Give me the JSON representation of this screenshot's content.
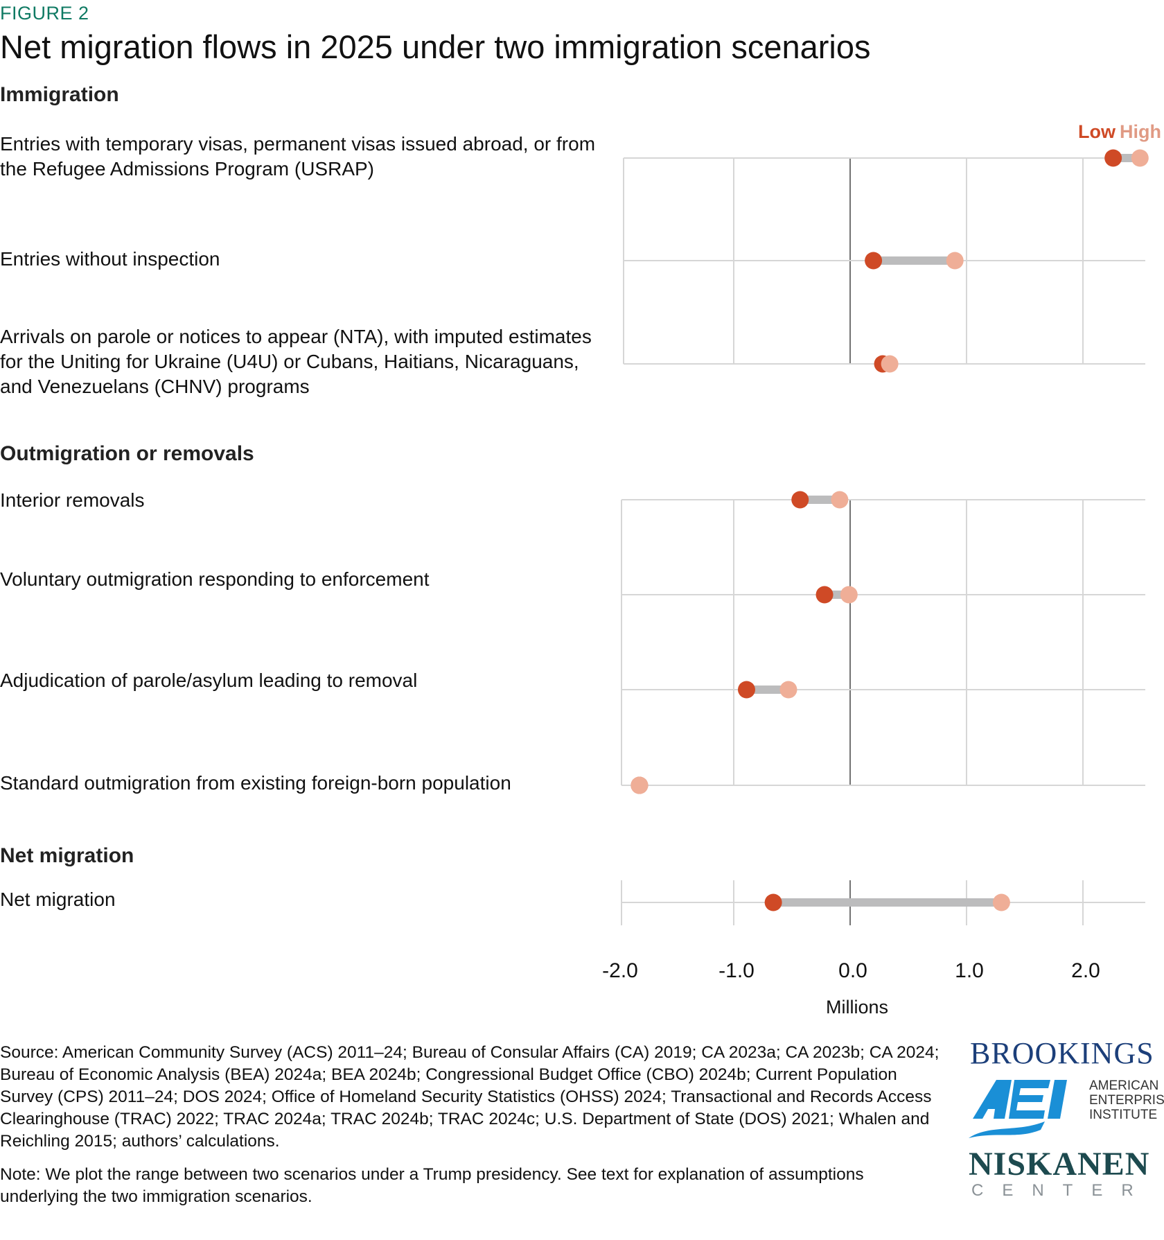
{
  "figure_label": "FIGURE 2",
  "title": "Net migration flows in 2025 under two immigration scenarios",
  "sections": [
    {
      "heading": "Immigration",
      "rows": [
        "Entries with temporary visas, permanent visas issued abroad, or from the Refugee Admissions Program (USRAP)",
        "Entries without inspection",
        "Arrivals on parole or notices to appear (NTA), with imputed estimates for the Uniting for Ukraine (U4U) or Cubans, Haitians, Nicaraguans, and Venezuelans (CHNV) programs"
      ]
    },
    {
      "heading": "Outmigration or removals",
      "rows": [
        "Interior removals",
        "Voluntary outmigration responding to enforcement",
        "Adjudication of parole/asylum leading to removal",
        "Standard outmigration from existing foreign-born population"
      ]
    },
    {
      "heading": "Net migration",
      "rows": [
        "Net migration"
      ]
    }
  ],
  "chart_data": {
    "type": "dumbbell",
    "xlabel": "Millions",
    "xlim": [
      -1.97,
      2.54
    ],
    "xticks": [
      -2.0,
      -1.0,
      0.0,
      1.0,
      2.0
    ],
    "xtick_labels": [
      "-2.0",
      "-1.0",
      "0.0",
      "1.0",
      "2.0"
    ],
    "grid": true,
    "legend": {
      "position": "top-right",
      "entries": [
        "Low",
        "High"
      ]
    },
    "colors": {
      "low": "#cf4a26",
      "high": "#efae97",
      "range": "#bcbcbd",
      "grid": "#d6d6d6",
      "zero": "#444444"
    },
    "series": [
      {
        "name": "Low",
        "values": [
          2.26,
          0.2,
          0.28,
          -0.43,
          -0.22,
          -0.89,
          -1.81,
          -0.66
        ]
      },
      {
        "name": "High",
        "values": [
          2.49,
          0.9,
          0.34,
          -0.09,
          -0.01,
          -0.53,
          -1.81,
          1.3
        ]
      }
    ],
    "categories": [
      "Entries with temporary visas, permanent visas issued abroad, or from the Refugee Admissions Program (USRAP)",
      "Entries without inspection",
      "Arrivals on parole or notices to appear (NTA), with imputed estimates for the Uniting for Ukraine (U4U) or Cubans, Haitians, Nicaraguans, and Venezuelans (CHNV) programs",
      "Interior removals",
      "Voluntary outmigration responding to enforcement",
      "Adjudication of parole/asylum leading to removal",
      "Standard outmigration from existing foreign-born population",
      "Net migration"
    ]
  },
  "source": "Source: American Community Survey (ACS) 2011–24; Bureau of Consular Affairs (CA) 2019; CA 2023a; CA 2023b; CA 2024; Bureau of Economic Analysis (BEA) 2024a; BEA 2024b; Congressional Budget Office (CBO) 2024b; Current Population Survey (CPS) 2011–24; DOS 2024; Office of Homeland Security Statistics (OHSS) 2024; Transactional and Records Access Clearinghouse (TRAC) 2022; TRAC 2024a; TRAC 2024b; TRAC 2024c; U.S. Department of State (DOS) 2021; Whalen and Reichling 2015; authors’ calculations.",
  "note": "Note: We plot the range between two scenarios under a Trump presidency. See text for explanation of assumptions underlying the two immigration scenarios.",
  "logos": {
    "brookings": "BROOKINGS",
    "aei": "AEI",
    "aei_text": [
      "AMERICAN",
      "ENTERPRISE",
      "INSTITUTE"
    ],
    "niskanen": "NISKANEN",
    "niskanen_sub": "CENTER"
  }
}
